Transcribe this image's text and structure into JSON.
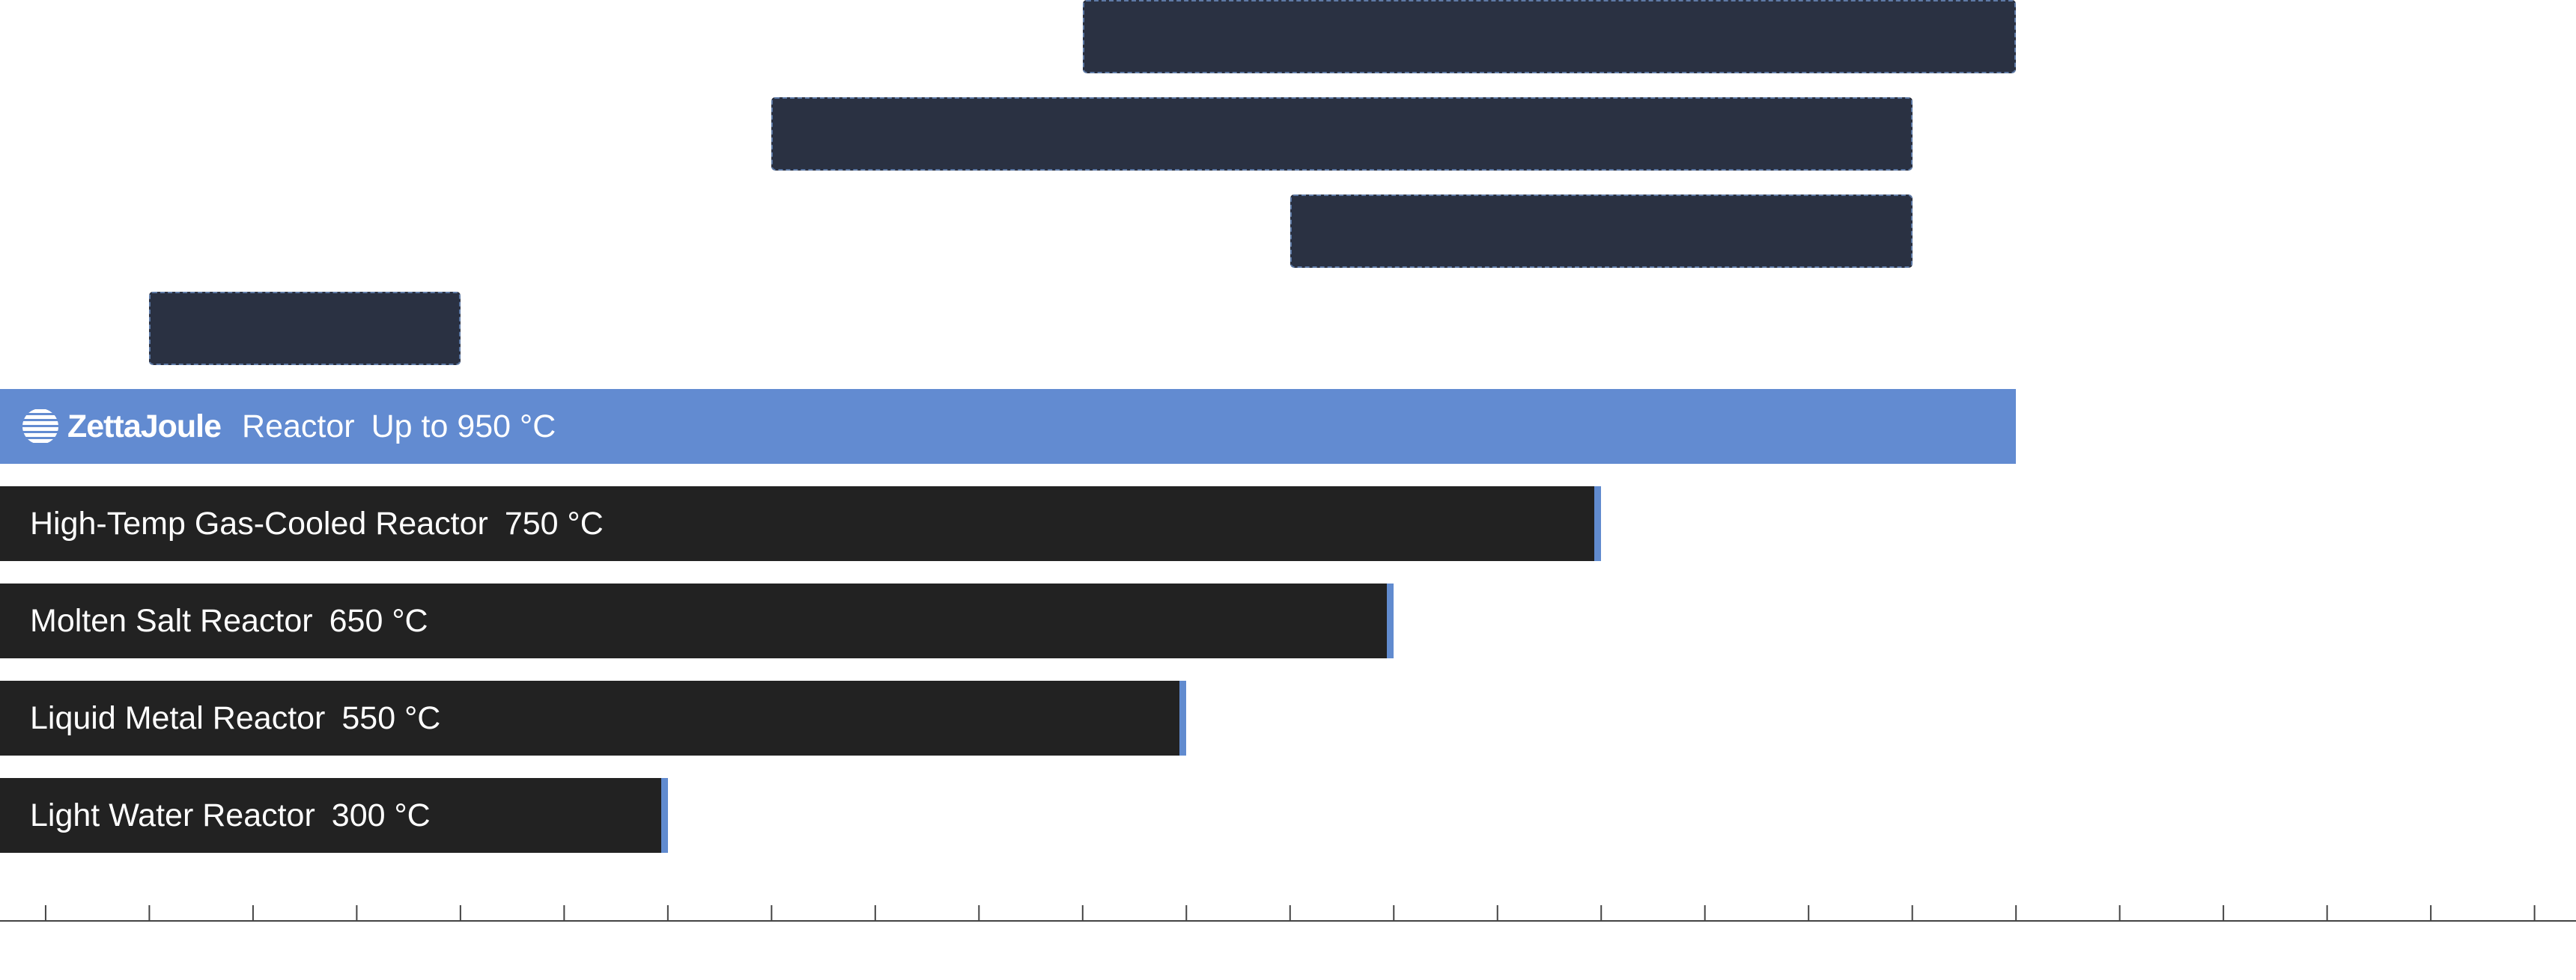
{
  "chart_data": {
    "type": "bar",
    "orientation": "horizontal",
    "categories": [
      "Reactor",
      "High-Temp Gas-Cooled Reactor",
      "Molten Salt Reactor",
      "Liquid Metal Reactor",
      "Light Water Reactor"
    ],
    "values": [
      950,
      750,
      650,
      550,
      300
    ],
    "value_labels": [
      "Up to 950 °C",
      "750 °C",
      "650 °C",
      "550 °C",
      "300 °C"
    ],
    "highlight_brand": "ZettaJoule",
    "highlight_index": 0,
    "range_boxes": [
      {
        "start": 500,
        "end": 950
      },
      {
        "start": 350,
        "end": 900
      },
      {
        "start": 600,
        "end": 900
      },
      {
        "start": 50,
        "end": 200
      }
    ],
    "xlim": [
      -22,
      1220
    ],
    "x_ticks": [
      0,
      50,
      100,
      150,
      200,
      250,
      300,
      350,
      400,
      450,
      500,
      550,
      600,
      650,
      700,
      750,
      800,
      850,
      900,
      950,
      1000,
      1050,
      1100,
      1150,
      1200
    ],
    "grid": false,
    "legend": "none",
    "colors": {
      "highlight": "#628bd1",
      "bar": "#222222",
      "accent": "#618bcf",
      "range_box": "#2a3142"
    }
  }
}
